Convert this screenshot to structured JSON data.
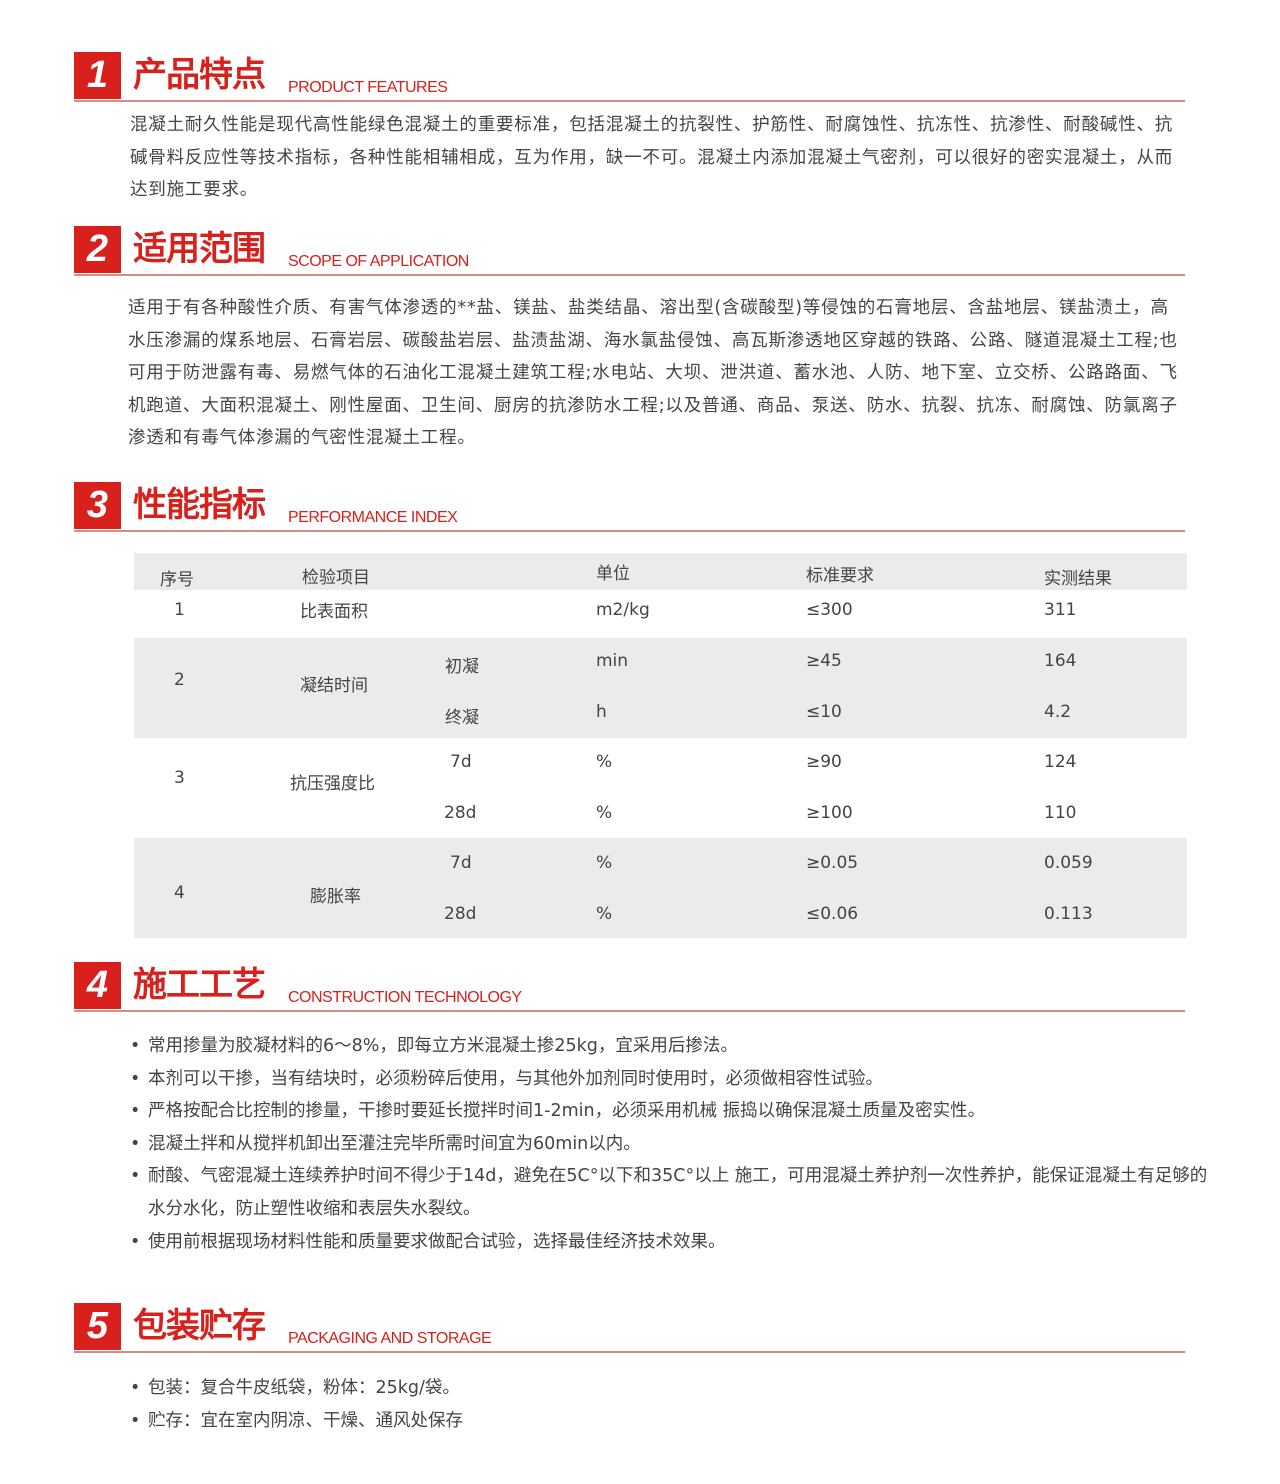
{
  "sections": [
    {
      "num": "1",
      "title_cn": "产品特点",
      "title_en": "PRODUCT FEATURES"
    },
    {
      "num": "2",
      "title_cn": "适用范围",
      "title_en": "SCOPE OF APPLICATION"
    },
    {
      "num": "3",
      "title_cn": "性能指标",
      "title_en": "PERFORMANCE INDEX"
    },
    {
      "num": "4",
      "title_cn": "施工工艺",
      "title_en": "CONSTRUCTION TECHNOLOGY"
    },
    {
      "num": "5",
      "title_cn": "包装贮存",
      "title_en": "PACKAGING AND STORAGE"
    }
  ],
  "features_text": "混凝土耐久性能是现代高性能绿色混凝土的重要标准，包括混凝土的抗裂性、护筋性、耐腐蚀性、抗冻性、抗渗性、耐酸碱性、抗碱骨料反应性等技术指标，各种性能相辅相成，互为作用，缺一不可。混凝土内添加混凝土气密剂，可以很好的密实混凝土，从而达到施工要求。",
  "scope_text": "适用于有各种酸性介质、有害气体渗透的**盐、镁盐、盐类结晶、溶出型(含碳酸型)等侵蚀的石膏地层、含盐地层、镁盐渍土，高水压渗漏的煤系地层、石膏岩层、碳酸盐岩层、盐渍盐湖、海水氯盐侵蚀、高瓦斯渗透地区穿越的铁路、公路、隧道混凝土工程;也可用于防泄露有毒、易燃气体的石油化工混凝土建筑工程;水电站、大坝、泄洪道、蓄水池、人防、地下室、立交桥、公路路面、飞机跑道、大面积混凝土、刚性屋面、卫生间、厨房的抗渗防水工程;以及普通、商品、泵送、防水、抗裂、抗冻、耐腐蚀、防氯离子渗透和有毒气体渗漏的气密性混凝土工程。",
  "table": {
    "headers": [
      "序号",
      "检验项目",
      "单位",
      "标准要求",
      "实测结果"
    ],
    "rows": [
      {
        "no": "1",
        "item": "比表面积",
        "sub": "",
        "unit": "m2/kg",
        "std": "≤300",
        "result": "311"
      },
      {
        "no": "2",
        "item": "凝结时间",
        "sub": "初凝",
        "unit": "min",
        "std": "≥45",
        "result": "164"
      },
      {
        "no": "",
        "item": "",
        "sub": "终凝",
        "unit": "h",
        "std": "≤10",
        "result": "4.2"
      },
      {
        "no": "3",
        "item": "抗压强度比",
        "sub": "7d",
        "unit": "%",
        "std": "≥90",
        "result": "124"
      },
      {
        "no": "",
        "item": "",
        "sub": "28d",
        "unit": "%",
        "std": "≥100",
        "result": "110"
      },
      {
        "no": "4",
        "item": "膨胀率",
        "sub": "7d",
        "unit": "%",
        "std": "≥0.05",
        "result": "0.059"
      },
      {
        "no": "",
        "item": "",
        "sub": "28d",
        "unit": "%",
        "std": "≤0.06",
        "result": "0.113"
      }
    ]
  },
  "construction": [
    "常用掺量为胶凝材料的6～8%，即每立方米混凝土掺25kg，宜采用后掺法。",
    "本剂可以干掺，当有结块时，必须粉碎后使用，与其他外加剂同时使用时，必须做相容性试验。",
    "严格按配合比控制的掺量，干掺时要延长搅拌时间1-2min，必须采用机械 振捣以确保混凝土质量及密实性。",
    "混凝土拌和从搅拌机卸出至灌注完毕所需时间宜为60min以内。",
    "耐酸、气密混凝土连续养护时间不得少于14d，避免在5C°以下和35C°以上 施工，可用混凝土养护剂一次性养护，能保证混凝土有足够的水分水化，防止塑性收缩和表层失水裂纹。",
    "使用前根据现场材料性能和质量要求做配合试验，选择最佳经济技术效果。"
  ],
  "packaging": [
    "包装：复合牛皮纸袋，粉体：25kg/袋。",
    "贮存：宜在室内阴凉、干燥、通风处保存"
  ],
  "colors": {
    "accent": "#d8201c",
    "band": "#ebebeb"
  }
}
